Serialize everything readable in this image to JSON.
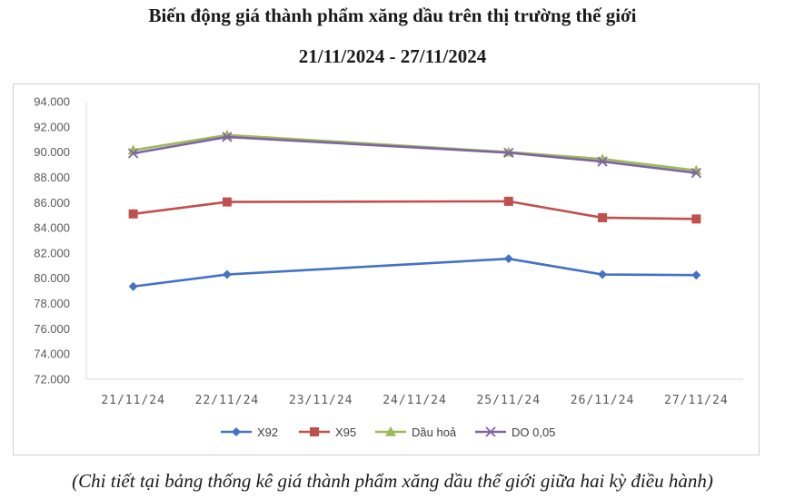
{
  "title_line1": "Biến động giá thành phẩm xăng dầu trên thị trường thế giới",
  "title_line2": "21/11/2024 - 27/11/2024",
  "caption": "(Chi tiết tại bảng thống kê giá thành phẩm xăng dầu thế giới giữa hai kỳ điều hành)",
  "chart_data": {
    "type": "line",
    "title": "",
    "xlabel": "",
    "ylabel": "",
    "ylim": [
      72000,
      94000
    ],
    "y_ticks": [
      94000,
      92000,
      90000,
      88000,
      86000,
      84000,
      82000,
      80000,
      78000,
      76000,
      74000,
      72000
    ],
    "y_tick_labels": [
      "94.000",
      "92.000",
      "90.000",
      "88.000",
      "86.000",
      "84.000",
      "82.000",
      "80.000",
      "78.000",
      "76.000",
      "74.000",
      "72.000"
    ],
    "categories": [
      "21/11/24",
      "22/11/24",
      "23/11/24",
      "24/11/24",
      "25/11/24",
      "26/11/24",
      "27/11/24"
    ],
    "legend_position": "bottom",
    "grid": false,
    "series": [
      {
        "name": "X92",
        "color": "#4472C4",
        "marker": "diamond",
        "values": [
          79350,
          80300,
          null,
          null,
          81550,
          80300,
          80250
        ]
      },
      {
        "name": "X95",
        "color": "#C0504D",
        "marker": "square",
        "values": [
          85100,
          86050,
          null,
          null,
          86100,
          84800,
          84700
        ]
      },
      {
        "name": "Dầu hoả",
        "color": "#9BBB59",
        "marker": "triangle",
        "values": [
          90150,
          91350,
          null,
          null,
          90000,
          89450,
          88550
        ]
      },
      {
        "name": "DO 0,05",
        "color": "#8064A2",
        "marker": "x",
        "values": [
          89900,
          91200,
          null,
          null,
          89950,
          89250,
          88350
        ]
      }
    ]
  }
}
